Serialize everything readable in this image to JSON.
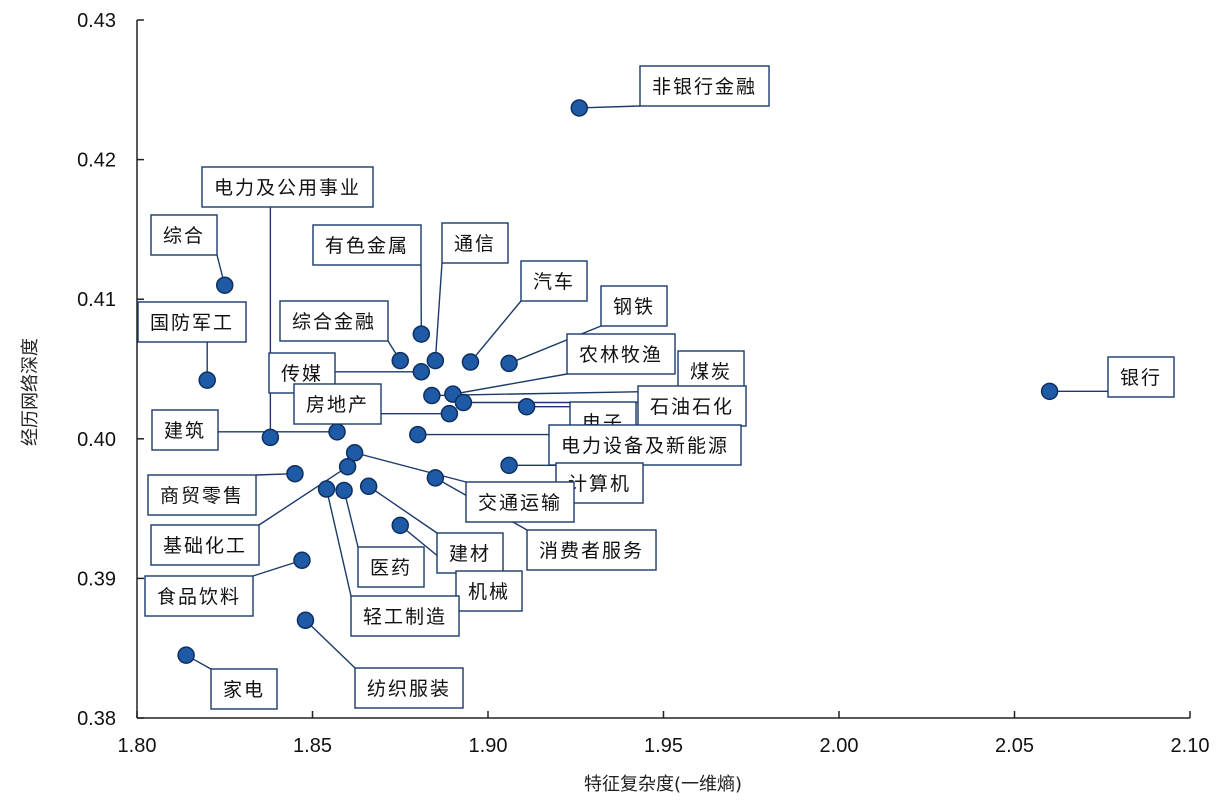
{
  "chart_data": {
    "type": "scatter",
    "xlabel": "特征复杂度(一维熵)",
    "ylabel": "经历网络深度",
    "xlim": [
      1.8,
      2.1
    ],
    "ylim": [
      0.38,
      0.43
    ],
    "x_ticks": [
      "1.80",
      "1.85",
      "1.90",
      "1.95",
      "2.00",
      "2.05",
      "2.10"
    ],
    "y_ticks": [
      "0.38",
      "0.39",
      "0.40",
      "0.41",
      "0.42",
      "0.43"
    ],
    "grid": false,
    "points": [
      {
        "label": "非银行金融",
        "x": 1.926,
        "y": 0.4237
      },
      {
        "label": "银行",
        "x": 2.06,
        "y": 0.4034
      },
      {
        "label": "电力及公用事业",
        "x": 1.838,
        "y": 0.4001
      },
      {
        "label": "综合",
        "x": 1.825,
        "y": 0.411
      },
      {
        "label": "国防军工",
        "x": 1.82,
        "y": 0.4042
      },
      {
        "label": "有色金属",
        "x": 1.881,
        "y": 0.4075
      },
      {
        "label": "通信",
        "x": 1.885,
        "y": 0.4056
      },
      {
        "label": "综合金融",
        "x": 1.875,
        "y": 0.4056
      },
      {
        "label": "汽车",
        "x": 1.895,
        "y": 0.4055
      },
      {
        "label": "钢铁",
        "x": 1.906,
        "y": 0.4054
      },
      {
        "label": "传媒",
        "x": 1.881,
        "y": 0.4048
      },
      {
        "label": "农林牧渔",
        "x": 1.89,
        "y": 0.4032
      },
      {
        "label": "煤炭",
        "x": 1.884,
        "y": 0.4031
      },
      {
        "label": "房地产",
        "x": 1.889,
        "y": 0.4018
      },
      {
        "label": "石油石化",
        "x": 1.893,
        "y": 0.4026
      },
      {
        "label": "电子",
        "x": 1.911,
        "y": 0.4023
      },
      {
        "label": "电力设备及新能源",
        "x": 1.88,
        "y": 0.4003
      },
      {
        "label": "建筑",
        "x": 1.857,
        "y": 0.4005
      },
      {
        "label": "计算机",
        "x": 1.906,
        "y": 0.3981
      },
      {
        "label": "商贸零售",
        "x": 1.845,
        "y": 0.3975
      },
      {
        "label": "交通运输",
        "x": 1.862,
        "y": 0.399
      },
      {
        "label": "消费者服务",
        "x": 1.885,
        "y": 0.3972
      },
      {
        "label": "基础化工",
        "x": 1.86,
        "y": 0.398
      },
      {
        "label": "医药",
        "x": 1.859,
        "y": 0.3963
      },
      {
        "label": "建材",
        "x": 1.866,
        "y": 0.3966
      },
      {
        "label": "机械",
        "x": 1.875,
        "y": 0.3938
      },
      {
        "label": "轻工制造",
        "x": 1.854,
        "y": 0.3964
      },
      {
        "label": "食品饮料",
        "x": 1.847,
        "y": 0.3913
      },
      {
        "label": "纺织服装",
        "x": 1.848,
        "y": 0.387
      },
      {
        "label": "家电",
        "x": 1.814,
        "y": 0.3845
      }
    ]
  }
}
